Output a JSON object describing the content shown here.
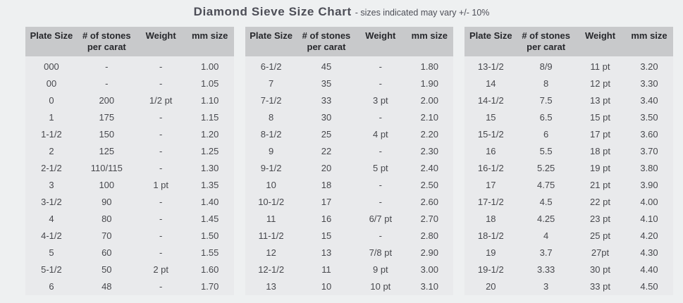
{
  "title": "Diamond Sieve Size Chart",
  "subtitle": "- sizes indicated may vary +/- 10%",
  "colors": {
    "page_background": "#eef0f1",
    "header_background": "#c8c9cb",
    "body_background": "#e9eaec",
    "title_text": "#4d4e57",
    "header_text": "#27282c",
    "body_text": "#47484d"
  },
  "columns": [
    {
      "lines": [
        "Plate Size"
      ]
    },
    {
      "lines": [
        "# of stones",
        "per carat"
      ]
    },
    {
      "lines": [
        "Weight"
      ]
    },
    {
      "lines": [
        "mm size"
      ]
    }
  ],
  "tables": [
    {
      "rows": [
        [
          "000",
          "-",
          "-",
          "1.00"
        ],
        [
          "00",
          "-",
          "-",
          "1.05"
        ],
        [
          "0",
          "200",
          "1/2 pt",
          "1.10"
        ],
        [
          "1",
          "175",
          "-",
          "1.15"
        ],
        [
          "1-1/2",
          "150",
          "-",
          "1.20"
        ],
        [
          "2",
          "125",
          "-",
          "1.25"
        ],
        [
          "2-1/2",
          "110/115",
          "-",
          "1.30"
        ],
        [
          "3",
          "100",
          "1 pt",
          "1.35"
        ],
        [
          "3-1/2",
          "90",
          "-",
          "1.40"
        ],
        [
          "4",
          "80",
          "-",
          "1.45"
        ],
        [
          "4-1/2",
          "70",
          "-",
          "1.50"
        ],
        [
          "5",
          "60",
          "-",
          "1.55"
        ],
        [
          "5-1/2",
          "50",
          "2 pt",
          "1.60"
        ],
        [
          "6",
          "48",
          "-",
          "1.70"
        ]
      ]
    },
    {
      "rows": [
        [
          "6-1/2",
          "45",
          "-",
          "1.80"
        ],
        [
          "7",
          "35",
          "-",
          "1.90"
        ],
        [
          "7-1/2",
          "33",
          "3 pt",
          "2.00"
        ],
        [
          "8",
          "30",
          "-",
          "2.10"
        ],
        [
          "8-1/2",
          "25",
          "4 pt",
          "2.20"
        ],
        [
          "9",
          "22",
          "-",
          "2.30"
        ],
        [
          "9-1/2",
          "20",
          "5 pt",
          "2.40"
        ],
        [
          "10",
          "18",
          "-",
          "2.50"
        ],
        [
          "10-1/2",
          "17",
          "-",
          "2.60"
        ],
        [
          "11",
          "16",
          "6/7 pt",
          "2.70"
        ],
        [
          "11-1/2",
          "15",
          "-",
          "2.80"
        ],
        [
          "12",
          "13",
          "7/8 pt",
          "2.90"
        ],
        [
          "12-1/2",
          "11",
          "9 pt",
          "3.00"
        ],
        [
          "13",
          "10",
          "10 pt",
          "3.10"
        ]
      ]
    },
    {
      "rows": [
        [
          "13-1/2",
          "8/9",
          "11 pt",
          "3.20"
        ],
        [
          "14",
          "8",
          "12 pt",
          "3.30"
        ],
        [
          "14-1/2",
          "7.5",
          "13 pt",
          "3.40"
        ],
        [
          "15",
          "6.5",
          "15 pt",
          "3.50"
        ],
        [
          "15-1/2",
          "6",
          "17 pt",
          "3.60"
        ],
        [
          "16",
          "5.5",
          "18 pt",
          "3.70"
        ],
        [
          "16-1/2",
          "5.25",
          "19 pt",
          "3.80"
        ],
        [
          "17",
          "4.75",
          "21 pt",
          "3.90"
        ],
        [
          "17-1/2",
          "4.5",
          "22 pt",
          "4.00"
        ],
        [
          "18",
          "4.25",
          "23 pt",
          "4.10"
        ],
        [
          "18-1/2",
          "4",
          "25 pt",
          "4.20"
        ],
        [
          "19",
          "3.7",
          "27pt",
          "4.30"
        ],
        [
          "19-1/2",
          "3.33",
          "30 pt",
          "4.40"
        ],
        [
          "20",
          "3",
          "33 pt",
          "4.50"
        ]
      ]
    }
  ]
}
